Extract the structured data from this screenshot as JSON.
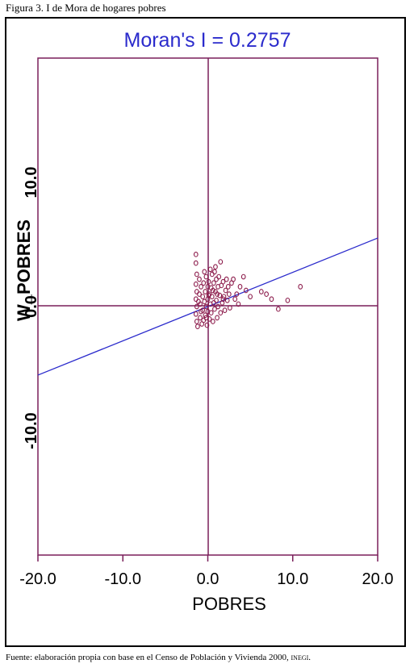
{
  "caption": "Figura 3. I de Mora de hogares pobres",
  "source": {
    "text": "Fuente: elaboración propia con base en el Censo de Población y Vivienda 2000, ",
    "org": "INEGI",
    "end": "."
  },
  "chart_data": {
    "type": "scatter",
    "title": "Moran's I = 0.2757",
    "xlabel": "POBRES",
    "ylabel": "W_POBRES",
    "xlim": [
      -20,
      20
    ],
    "ylim": [
      -20,
      20
    ],
    "xticks": [
      {
        "value": -20,
        "label": "-20.0"
      },
      {
        "value": -10,
        "label": "-10.0"
      },
      {
        "value": 0,
        "label": "0.0"
      },
      {
        "value": 10,
        "label": "10.0"
      },
      {
        "value": 20,
        "label": "20.0"
      }
    ],
    "yticks": [
      {
        "value": -10,
        "label": "-10.0"
      },
      {
        "value": 0,
        "label": "0.0"
      },
      {
        "value": 10,
        "label": "10.0"
      }
    ],
    "regression": {
      "slope": 0.2757,
      "intercept": 0
    },
    "colors": {
      "points": "#8b1a4a",
      "axes": "#7a1f5a",
      "line": "#2b2bcc",
      "title": "#2b2bcc"
    },
    "points": [
      [
        -1.4,
        4.2
      ],
      [
        -1.4,
        3.5
      ],
      [
        -1.3,
        2.6
      ],
      [
        -1.4,
        1.8
      ],
      [
        -1.3,
        1.2
      ],
      [
        -1.4,
        0.6
      ],
      [
        -1.3,
        0.0
      ],
      [
        -1.4,
        -0.6
      ],
      [
        -1.3,
        -1.2
      ],
      [
        -1.2,
        -1.6
      ],
      [
        -1.0,
        2.2
      ],
      [
        -1.0,
        1.0
      ],
      [
        -0.9,
        0.2
      ],
      [
        -0.9,
        -0.9
      ],
      [
        -0.8,
        1.6
      ],
      [
        -0.7,
        -1.4
      ],
      [
        -0.6,
        0.8
      ],
      [
        -0.6,
        -0.3
      ],
      [
        -0.5,
        1.9
      ],
      [
        -0.5,
        -1.1
      ],
      [
        -0.4,
        0.4
      ],
      [
        -0.3,
        1.2
      ],
      [
        -0.3,
        -0.7
      ],
      [
        -0.2,
        2.4
      ],
      [
        -0.2,
        0.0
      ],
      [
        -0.1,
        -1.5
      ],
      [
        0.0,
        1.6
      ],
      [
        0.0,
        0.6
      ],
      [
        0.0,
        -0.4
      ],
      [
        0.1,
        2.0
      ],
      [
        0.2,
        1.0
      ],
      [
        0.2,
        -1.0
      ],
      [
        0.3,
        3.0
      ],
      [
        0.3,
        0.2
      ],
      [
        0.4,
        1.5
      ],
      [
        0.4,
        -0.5
      ],
      [
        0.5,
        2.6
      ],
      [
        0.5,
        0.8
      ],
      [
        0.6,
        -1.2
      ],
      [
        0.7,
        1.9
      ],
      [
        0.7,
        0.3
      ],
      [
        0.8,
        2.8
      ],
      [
        0.8,
        -0.2
      ],
      [
        0.9,
        1.2
      ],
      [
        1.0,
        2.2
      ],
      [
        1.0,
        0.5
      ],
      [
        1.1,
        -0.9
      ],
      [
        1.2,
        1.6
      ],
      [
        1.2,
        0.0
      ],
      [
        1.3,
        2.4
      ],
      [
        1.4,
        0.9
      ],
      [
        1.5,
        -0.5
      ],
      [
        1.5,
        3.6
      ],
      [
        1.6,
        1.7
      ],
      [
        1.7,
        0.3
      ],
      [
        1.8,
        2.0
      ],
      [
        1.9,
        0.8
      ],
      [
        2.0,
        -0.3
      ],
      [
        2.1,
        1.3
      ],
      [
        2.2,
        2.2
      ],
      [
        2.3,
        0.5
      ],
      [
        2.5,
        1.0
      ],
      [
        2.6,
        -0.1
      ],
      [
        2.8,
        1.9
      ],
      [
        3.0,
        2.2
      ],
      [
        3.2,
        0.6
      ],
      [
        3.4,
        1.0
      ],
      [
        3.6,
        0.2
      ],
      [
        3.8,
        1.6
      ],
      [
        4.2,
        2.4
      ],
      [
        4.5,
        1.3
      ],
      [
        5.0,
        0.8
      ],
      [
        6.3,
        1.2
      ],
      [
        6.9,
        1.0
      ],
      [
        7.5,
        0.6
      ],
      [
        8.3,
        -0.2
      ],
      [
        9.4,
        0.5
      ],
      [
        10.9,
        1.6
      ],
      [
        -1.1,
        0.4
      ],
      [
        -0.8,
        -0.4
      ],
      [
        0.1,
        0.9
      ],
      [
        0.6,
        1.3
      ],
      [
        1.1,
        1.0
      ],
      [
        -0.4,
        2.8
      ],
      [
        0.9,
        3.2
      ],
      [
        -0.2,
        -0.9
      ],
      [
        1.8,
        0.6
      ],
      [
        2.4,
        1.6
      ]
    ]
  }
}
